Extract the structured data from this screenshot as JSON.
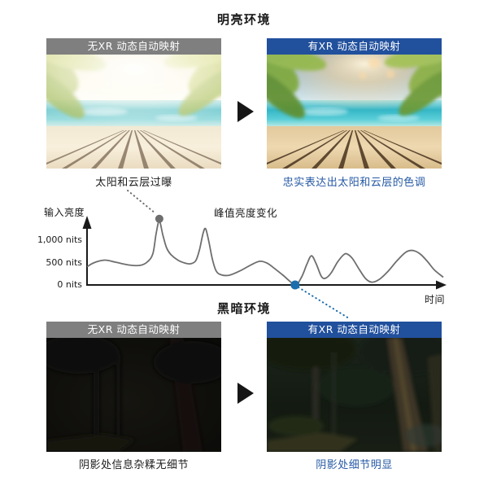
{
  "colors": {
    "header_gray": "#7f7f7f",
    "header_blue": "#21509d",
    "caption_blue": "#2458a4",
    "text_dark": "#1a1a1a",
    "curve_gray": "#6e6e6e",
    "dot_gray": "#6e6e6e",
    "dot_blue": "#1c6dad",
    "axis_black": "#1a1a1a"
  },
  "bright_section": {
    "title": "明亮环境",
    "before_panel": {
      "header": "无XR 动态自动映射",
      "caption": "太阳和云层过曝"
    },
    "after_panel": {
      "header": "有XR 动态自动映射",
      "caption": "忠实表达出太阳和云层的色调"
    }
  },
  "dark_section": {
    "title": "黑暗环境",
    "before_panel": {
      "header": "无XR 动态自动映射",
      "caption": "阴影处信息杂糅无细节"
    },
    "after_panel": {
      "header": "有XR 动态自动映射",
      "caption": "阴影处细节明显"
    }
  },
  "chart_data": {
    "type": "line",
    "title": "峰值亮度变化",
    "ylabel": "输入亮度",
    "xlabel": "时间",
    "ytick_labels": [
      "1,000 nits",
      "500 nits",
      "0 nits"
    ],
    "ytick_values": [
      1000,
      500,
      0
    ],
    "xlim": [
      0,
      100
    ],
    "ylim": [
      0,
      1500
    ],
    "grid": false,
    "legend": false,
    "series": [
      {
        "name": "输入亮度",
        "points": [
          [
            0,
            400
          ],
          [
            2,
            490
          ],
          [
            5,
            545
          ],
          [
            8,
            500
          ],
          [
            12,
            435
          ],
          [
            15,
            430
          ],
          [
            17,
            510
          ],
          [
            18.5,
            690
          ],
          [
            19.4,
            1130
          ],
          [
            20.3,
            1400
          ],
          [
            21.3,
            1090
          ],
          [
            22.3,
            820
          ],
          [
            23.5,
            670
          ],
          [
            25.5,
            545
          ],
          [
            27.5,
            480
          ],
          [
            29,
            465
          ],
          [
            30.5,
            530
          ],
          [
            31.6,
            780
          ],
          [
            32.6,
            1140
          ],
          [
            33.3,
            1230
          ],
          [
            34.2,
            950
          ],
          [
            35.2,
            560
          ],
          [
            36.3,
            300
          ],
          [
            37.8,
            220
          ],
          [
            40,
            215
          ],
          [
            43,
            310
          ],
          [
            46,
            440
          ],
          [
            48.5,
            520
          ],
          [
            50.5,
            480
          ],
          [
            52.5,
            370
          ],
          [
            55,
            215
          ],
          [
            58.4,
            5
          ],
          [
            60.2,
            170
          ],
          [
            61.7,
            450
          ],
          [
            63,
            640
          ],
          [
            64.3,
            470
          ],
          [
            65.8,
            185
          ],
          [
            67,
            150
          ],
          [
            68.5,
            260
          ],
          [
            70.3,
            500
          ],
          [
            72,
            660
          ],
          [
            73,
            680
          ],
          [
            74.5,
            580
          ],
          [
            76.5,
            330
          ],
          [
            78.3,
            130
          ],
          [
            80,
            60
          ],
          [
            82,
            120
          ],
          [
            84.5,
            300
          ],
          [
            87,
            530
          ],
          [
            89.5,
            720
          ],
          [
            91.5,
            755
          ],
          [
            93.5,
            680
          ],
          [
            95.5,
            520
          ],
          [
            97.5,
            330
          ],
          [
            100,
            170
          ]
        ]
      }
    ],
    "markers": [
      {
        "name": "overexposed-peak-marker",
        "t": 20.3,
        "nits": 1450,
        "color": "#6e6e6e",
        "links_to": "太阳和云层过曝"
      },
      {
        "name": "dark-detail-marker",
        "t": 58.4,
        "nits": 0,
        "color": "#1c6dad",
        "links_to": "阴影处细节明显"
      }
    ]
  }
}
